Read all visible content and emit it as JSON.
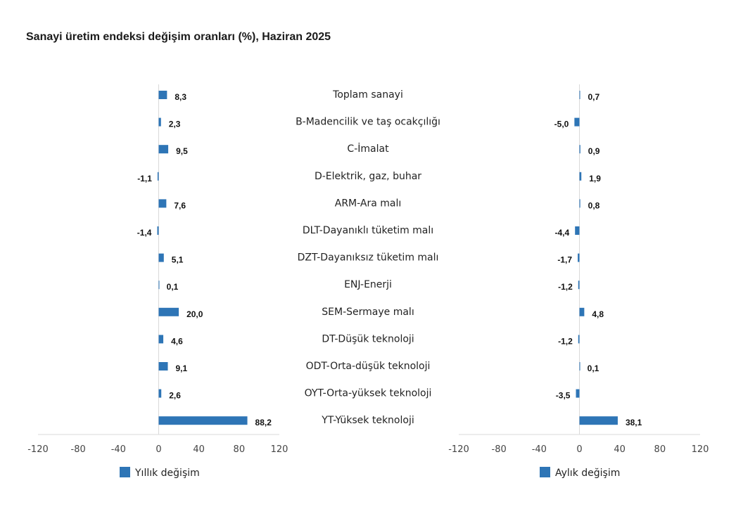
{
  "chart_data": {
    "type": "bar",
    "orientation": "horizontal",
    "title": "Sanayi üretim endeksi değişim oranları (%), Haziran 2025",
    "categories": [
      "Toplam sanayi",
      "B-Madencilik ve taş ocakçılığı",
      "C-İmalat",
      "D-Elektrik, gaz, buhar",
      "ARM-Ara malı",
      "DLT-Dayanıklı tüketim malı",
      "DZT-Dayanıksız tüketim malı",
      "ENJ-Enerji",
      "SEM-Sermaye malı",
      "DT-Düşük teknoloji",
      "ODT-Orta-düşük teknoloji",
      "OYT-Orta-yüksek teknoloji",
      "YT-Yüksek teknoloji"
    ],
    "series": [
      {
        "name": "Yıllık değişim",
        "values": [
          8.3,
          2.3,
          9.5,
          -1.1,
          7.6,
          -1.4,
          5.1,
          0.1,
          20.0,
          4.6,
          9.1,
          2.6,
          88.2
        ],
        "value_labels": [
          "8,3",
          "2,3",
          "9,5",
          "-1,1",
          "7,6",
          "-1,4",
          "5,1",
          "0,1",
          "20,0",
          "4,6",
          "9,1",
          "2,6",
          "88,2"
        ],
        "xlim": [
          -120,
          120
        ],
        "xticks": [
          -120,
          -80,
          -40,
          0,
          40,
          80,
          120
        ]
      },
      {
        "name": "Aylık değişim",
        "values": [
          0.7,
          -5.0,
          0.9,
          1.9,
          0.8,
          -4.4,
          -1.7,
          -1.2,
          4.8,
          -1.2,
          0.1,
          -3.5,
          38.1
        ],
        "value_labels": [
          "0,7",
          "-5,0",
          "0,9",
          "1,9",
          "0,8",
          "-4,4",
          "-1,7",
          "-1,2",
          "4,8",
          "-1,2",
          "0,1",
          "-3,5",
          "38,1"
        ],
        "xlim": [
          -120,
          120
        ],
        "xticks": [
          -120,
          -80,
          -40,
          0,
          40,
          80,
          120
        ]
      }
    ],
    "bar_color": "#2E75B6",
    "axis_color": "#D9D9D9",
    "grid": false,
    "legend_position": "bottom-left"
  }
}
